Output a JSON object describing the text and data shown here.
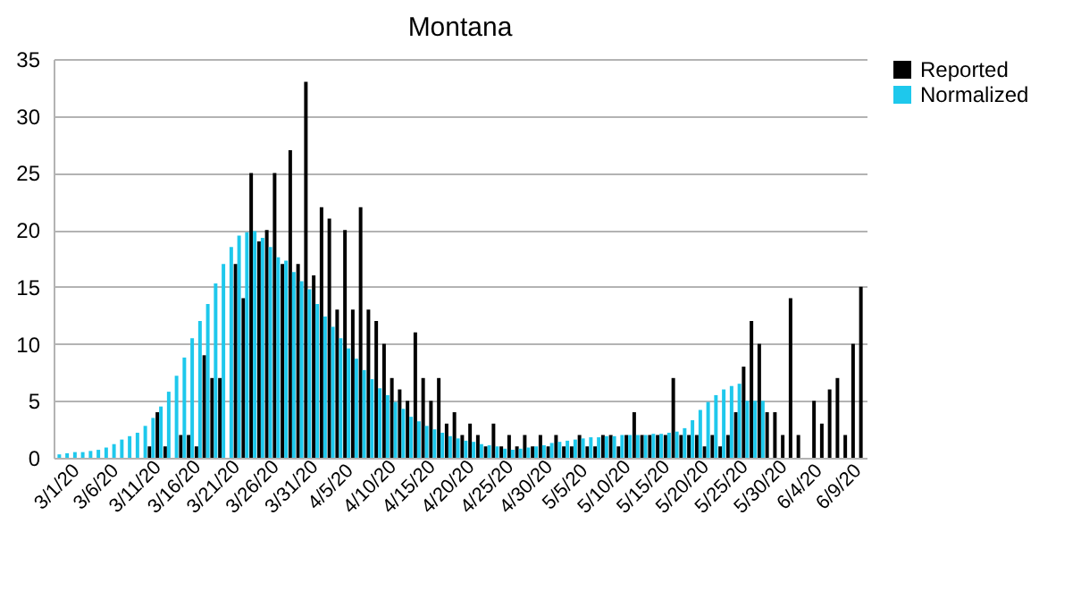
{
  "chart_data": {
    "type": "bar",
    "title": "Montana",
    "categories": [
      "3/1/20",
      null,
      null,
      null,
      null,
      "3/6/20",
      null,
      null,
      null,
      null,
      "3/11/20",
      null,
      null,
      null,
      null,
      "3/16/20",
      null,
      null,
      null,
      null,
      "3/21/20",
      null,
      null,
      null,
      null,
      "3/26/20",
      null,
      null,
      null,
      null,
      "3/31/20",
      null,
      null,
      null,
      null,
      "4/5/20",
      null,
      null,
      null,
      null,
      "4/10/20",
      null,
      null,
      null,
      null,
      "4/15/20",
      null,
      null,
      null,
      null,
      "4/20/20",
      null,
      null,
      null,
      null,
      "4/25/20",
      null,
      null,
      null,
      null,
      "4/30/20",
      null,
      null,
      null,
      null,
      "5/5/20",
      null,
      null,
      null,
      null,
      "5/10/20",
      null,
      null,
      null,
      null,
      "5/15/20",
      null,
      null,
      null,
      null,
      "5/20/20",
      null,
      null,
      null,
      null,
      "5/25/20",
      null,
      null,
      null,
      null,
      "5/30/20",
      null,
      null,
      null,
      null,
      "6/4/20",
      null,
      null,
      null,
      null,
      "6/9/20",
      null,
      null,
      null
    ],
    "series": [
      {
        "name": "Reported",
        "color": "#000000",
        "values": [
          0,
          0,
          0,
          0,
          0,
          0,
          0,
          0,
          0,
          0,
          0,
          0,
          1,
          4,
          1,
          0,
          2,
          2,
          1,
          9,
          7,
          7,
          0,
          17,
          14,
          25,
          19,
          20,
          25,
          17,
          27,
          17,
          33,
          16,
          22,
          21,
          13,
          20,
          13,
          22,
          13,
          12,
          10,
          7,
          6,
          5,
          11,
          7,
          5,
          7,
          3,
          4,
          2,
          3,
          2,
          1,
          3,
          1,
          2,
          1,
          2,
          1,
          2,
          1,
          2,
          1,
          1,
          2,
          1,
          1,
          2,
          2,
          1,
          2,
          4,
          2,
          2,
          2,
          2,
          7,
          2,
          2,
          2,
          1,
          2,
          1,
          2,
          4,
          8,
          12,
          10,
          4,
          4,
          2,
          14,
          2,
          0,
          5,
          3,
          6,
          7,
          2,
          10,
          15
        ]
      },
      {
        "name": "Normalized",
        "color": "#1ec8ec",
        "values": [
          0.3,
          0.4,
          0.5,
          0.5,
          0.6,
          0.7,
          0.9,
          1.2,
          1.6,
          1.9,
          2.2,
          2.8,
          3.5,
          4.5,
          5.8,
          7.2,
          8.8,
          10.5,
          12,
          13.5,
          15.3,
          17,
          18.5,
          19.5,
          19.8,
          19.9,
          19.3,
          18.5,
          17.6,
          17.3,
          16.3,
          15.5,
          14.8,
          13.5,
          12.4,
          11.5,
          10.5,
          9.6,
          8.7,
          7.7,
          6.9,
          6.1,
          5.5,
          4.9,
          4.3,
          3.6,
          3.2,
          2.8,
          2.5,
          2.2,
          1.9,
          1.7,
          1.5,
          1.4,
          1.2,
          1.1,
          1,
          0.8,
          0.7,
          0.8,
          0.9,
          1,
          1.1,
          1.3,
          1.4,
          1.5,
          1.6,
          1.7,
          1.8,
          1.8,
          1.9,
          1.9,
          2,
          2,
          2,
          2,
          2.1,
          2.1,
          2.2,
          2.3,
          2.6,
          3.3,
          4.2,
          4.9,
          5.5,
          6,
          6.3,
          6.5,
          5,
          5,
          5,
          null,
          null,
          null,
          null,
          null,
          null,
          null,
          null,
          null,
          null,
          null,
          null,
          null
        ]
      }
    ],
    "ylim": [
      0,
      35
    ],
    "yticks": [
      0,
      5,
      10,
      15,
      20,
      25,
      30,
      35
    ],
    "grid": "y",
    "legend": "right"
  }
}
